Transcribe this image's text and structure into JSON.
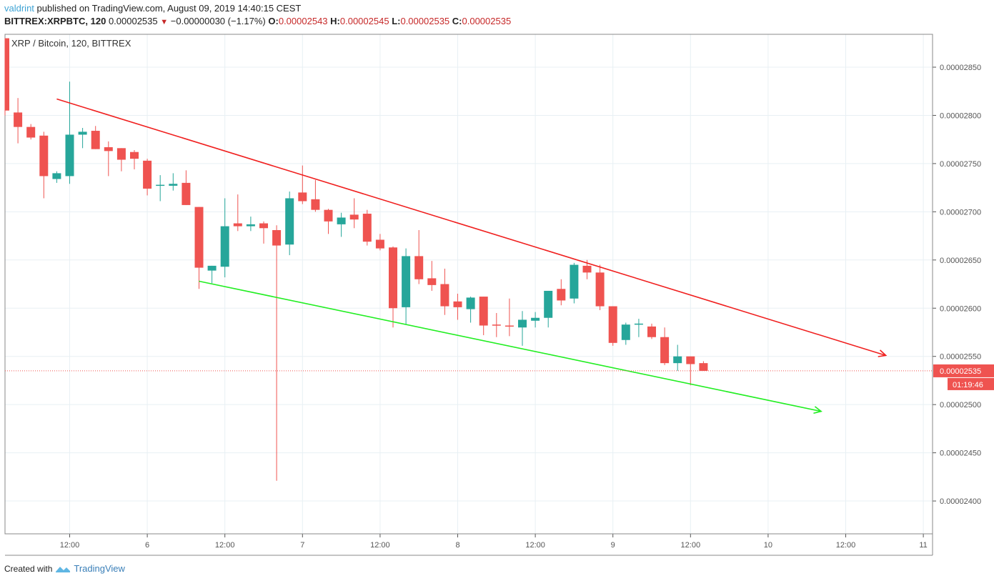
{
  "header": {
    "user": "valdrint",
    "published": "published on TradingView.com, August 09, 2019 14:40:15 CEST",
    "symbol": "BITTREX:XRPBTC, 120",
    "last": "0.00002535",
    "change": "−0.00000030 (−1.17%)",
    "o_label": "O:",
    "o": "0.00002543",
    "h_label": "H:",
    "h": "0.00002545",
    "l_label": "L:",
    "l": "0.00002535",
    "c_label": "C:",
    "c": "0.00002535"
  },
  "legend": "XRP / Bitcoin, 120, BITTREX",
  "footer": {
    "created": "Created with",
    "brand": "TradingView"
  },
  "colors": {
    "up": "#26a69a",
    "down": "#ef5350",
    "resistance": "#f0201f",
    "support": "#22ee22",
    "grid": "#e8f0f4"
  },
  "chart_data": {
    "type": "candlestick",
    "title": "XRP / Bitcoin, 120, BITTREX",
    "price_unit": "1e-8 BTC",
    "interval_minutes": 120,
    "first_bar": "Aug 5 02:00",
    "ylim": [
      2365,
      2890
    ],
    "y_ticks": [
      2400,
      2450,
      2500,
      2550,
      2600,
      2650,
      2700,
      2750,
      2800,
      2850
    ],
    "y_tick_labels": [
      "0.00002400",
      "0.00002450",
      "0.00002500",
      "0.00002550",
      "0.00002600",
      "0.00002650",
      "0.00002700",
      "0.00002750",
      "0.00002800",
      "0.00002850"
    ],
    "x_ticks": [
      {
        "bar": 5,
        "label": "12:00"
      },
      {
        "bar": 11,
        "label": "6"
      },
      {
        "bar": 17,
        "label": "12:00"
      },
      {
        "bar": 23,
        "label": "7"
      },
      {
        "bar": 29,
        "label": "12:00"
      },
      {
        "bar": 35,
        "label": "8"
      },
      {
        "bar": 41,
        "label": "12:00"
      },
      {
        "bar": 47,
        "label": "9"
      },
      {
        "bar": 53,
        "label": "12:00"
      },
      {
        "bar": 59,
        "label": "10"
      },
      {
        "bar": 65,
        "label": "12:00"
      },
      {
        "bar": 71,
        "label": "11"
      }
    ],
    "ohlc": [
      [
        2880,
        2880,
        2800,
        2805
      ],
      [
        2803,
        2818,
        2771,
        2788
      ],
      [
        2788,
        2791,
        2775,
        2777
      ],
      [
        2779,
        2783,
        2714,
        2737
      ],
      [
        2734,
        2742,
        2730,
        2740
      ],
      [
        2737,
        2835,
        2729,
        2780
      ],
      [
        2780,
        2787,
        2766,
        2783
      ],
      [
        2784,
        2789,
        2765,
        2765
      ],
      [
        2767,
        2773,
        2737,
        2763
      ],
      [
        2766,
        2766,
        2742,
        2754
      ],
      [
        2762,
        2764,
        2744,
        2755
      ],
      [
        2753,
        2755,
        2717,
        2724
      ],
      [
        2727,
        2738,
        2711,
        2728
      ],
      [
        2727,
        2740,
        2722,
        2729
      ],
      [
        2730,
        2743,
        2707,
        2707
      ],
      [
        2705,
        2705,
        2620,
        2642
      ],
      [
        2639,
        2644,
        2626,
        2644
      ],
      [
        2643,
        2714,
        2632,
        2685
      ],
      [
        2688,
        2718,
        2680,
        2685
      ],
      [
        2685,
        2695,
        2680,
        2687
      ],
      [
        2688,
        2690,
        2667,
        2683
      ],
      [
        2681,
        2686,
        2421,
        2665
      ],
      [
        2666,
        2721,
        2655,
        2714
      ],
      [
        2720,
        2748,
        2708,
        2711
      ],
      [
        2713,
        2733,
        2700,
        2702
      ],
      [
        2702,
        2703,
        2677,
        2690
      ],
      [
        2687,
        2699,
        2674,
        2694
      ],
      [
        2697,
        2714,
        2683,
        2692
      ],
      [
        2698,
        2702,
        2665,
        2669
      ],
      [
        2671,
        2677,
        2660,
        2662
      ],
      [
        2663,
        2664,
        2580,
        2600
      ],
      [
        2601,
        2662,
        2583,
        2654
      ],
      [
        2654,
        2681,
        2625,
        2630
      ],
      [
        2631,
        2649,
        2618,
        2624
      ],
      [
        2625,
        2641,
        2593,
        2602
      ],
      [
        2607,
        2615,
        2588,
        2601
      ],
      [
        2599,
        2612,
        2585,
        2611
      ],
      [
        2612,
        2612,
        2572,
        2582
      ],
      [
        2583,
        2595,
        2570,
        2582
      ],
      [
        2582,
        2610,
        2571,
        2581
      ],
      [
        2580,
        2597,
        2561,
        2588
      ],
      [
        2587,
        2596,
        2580,
        2590
      ],
      [
        2590,
        2618,
        2580,
        2618
      ],
      [
        2620,
        2630,
        2603,
        2608
      ],
      [
        2610,
        2647,
        2605,
        2645
      ],
      [
        2644,
        2650,
        2630,
        2637
      ],
      [
        2637,
        2645,
        2598,
        2602
      ],
      [
        2602,
        2602,
        2561,
        2564
      ],
      [
        2567,
        2585,
        2562,
        2583
      ],
      [
        2583,
        2589,
        2570,
        2584
      ],
      [
        2581,
        2584,
        2568,
        2570
      ],
      [
        2570,
        2580,
        2541,
        2543
      ],
      [
        2543,
        2562,
        2535,
        2550
      ],
      [
        2550,
        2550,
        2520,
        2542
      ],
      [
        2543,
        2545,
        2535,
        2535
      ]
    ],
    "trendlines": [
      {
        "name": "resistance",
        "from": {
          "bar": 4,
          "price": 2817
        },
        "to": {
          "bar": 68.1,
          "price": 2551
        }
      },
      {
        "name": "support",
        "from": {
          "bar": 15,
          "price": 2628
        },
        "to": {
          "bar": 63.1,
          "price": 2493
        }
      }
    ],
    "last_price": 2535,
    "last_price_label": "0.00002535",
    "countdown": "01:19:46"
  }
}
